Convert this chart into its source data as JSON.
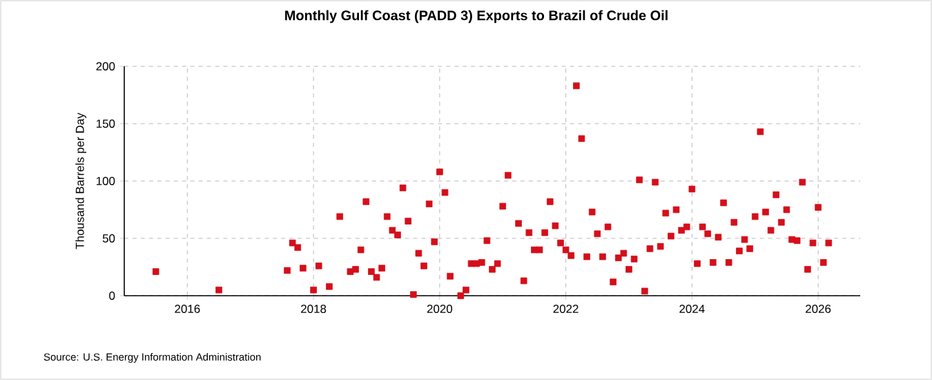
{
  "chart_data": {
    "type": "scatter",
    "title": "Monthly Gulf Coast (PADD 3) Exports to Brazil of Crude Oil",
    "ylabel": "Thousand Barrels per Day",
    "annotations": [
      "Source: U.S. Energy Information Administration"
    ],
    "x": [
      "2015-07",
      "2016-07",
      "2017-08",
      "2017-09",
      "2017-10",
      "2017-11",
      "2018-01",
      "2018-02",
      "2018-04",
      "2018-06",
      "2018-08",
      "2018-09",
      "2018-10",
      "2018-11",
      "2018-12",
      "2019-01",
      "2019-02",
      "2019-03",
      "2019-04",
      "2019-05",
      "2019-06",
      "2019-07",
      "2019-08",
      "2019-09",
      "2019-10",
      "2019-11",
      "2019-12",
      "2020-01",
      "2020-02",
      "2020-03",
      "2020-05",
      "2020-06",
      "2020-07",
      "2020-08",
      "2020-09",
      "2020-10",
      "2020-11",
      "2020-12",
      "2021-01",
      "2021-02",
      "2021-04",
      "2021-05",
      "2021-06",
      "2021-07",
      "2021-08",
      "2021-09",
      "2021-10",
      "2021-11",
      "2021-12",
      "2022-01",
      "2022-02",
      "2022-03",
      "2022-04",
      "2022-05",
      "2022-06",
      "2022-07",
      "2022-08",
      "2022-09",
      "2022-10",
      "2022-11",
      "2022-12",
      "2023-01",
      "2023-02",
      "2023-03",
      "2023-04",
      "2023-05",
      "2023-06",
      "2023-07",
      "2023-08",
      "2023-09",
      "2023-10",
      "2023-11",
      "2023-12",
      "2024-01",
      "2024-02",
      "2024-03",
      "2024-04",
      "2024-05",
      "2024-06",
      "2024-07",
      "2024-08",
      "2024-09",
      "2024-10",
      "2024-11",
      "2024-12",
      "2025-01",
      "2025-02",
      "2025-03",
      "2025-04",
      "2025-05",
      "2025-06",
      "2025-07",
      "2025-08",
      "2025-09",
      "2025-10",
      "2025-11",
      "2025-12",
      "2026-01",
      "2026-02",
      "2026-03"
    ],
    "values": [
      21,
      5,
      22,
      46,
      42,
      24,
      5,
      26,
      8,
      69,
      21,
      23,
      40,
      82,
      21,
      16,
      24,
      69,
      57,
      53,
      94,
      65,
      1,
      37,
      26,
      80,
      47,
      108,
      90,
      17,
      0,
      5,
      28,
      28,
      29,
      48,
      23,
      28,
      78,
      105,
      63,
      13,
      55,
      40,
      40,
      55,
      82,
      61,
      46,
      40,
      35,
      183,
      137,
      34,
      73,
      54,
      34,
      60,
      12,
      33,
      37,
      23,
      32,
      101,
      4,
      41,
      99,
      43,
      72,
      52,
      75,
      57,
      60,
      93,
      28,
      60,
      54,
      29,
      51,
      81,
      29,
      64,
      39,
      49,
      41,
      69,
      143,
      73,
      57,
      88,
      64,
      75,
      49,
      48,
      99,
      23,
      46,
      77,
      29,
      46
    ],
    "color": "#d40f1b",
    "marker": "square",
    "grid": true,
    "xlim": [
      "2015-01",
      "2026-09"
    ],
    "xticks": [
      "2016",
      "2018",
      "2020",
      "2022",
      "2024",
      "2026"
    ],
    "ylim": [
      0,
      200
    ],
    "yticks": [
      0,
      50,
      100,
      150,
      200
    ]
  }
}
